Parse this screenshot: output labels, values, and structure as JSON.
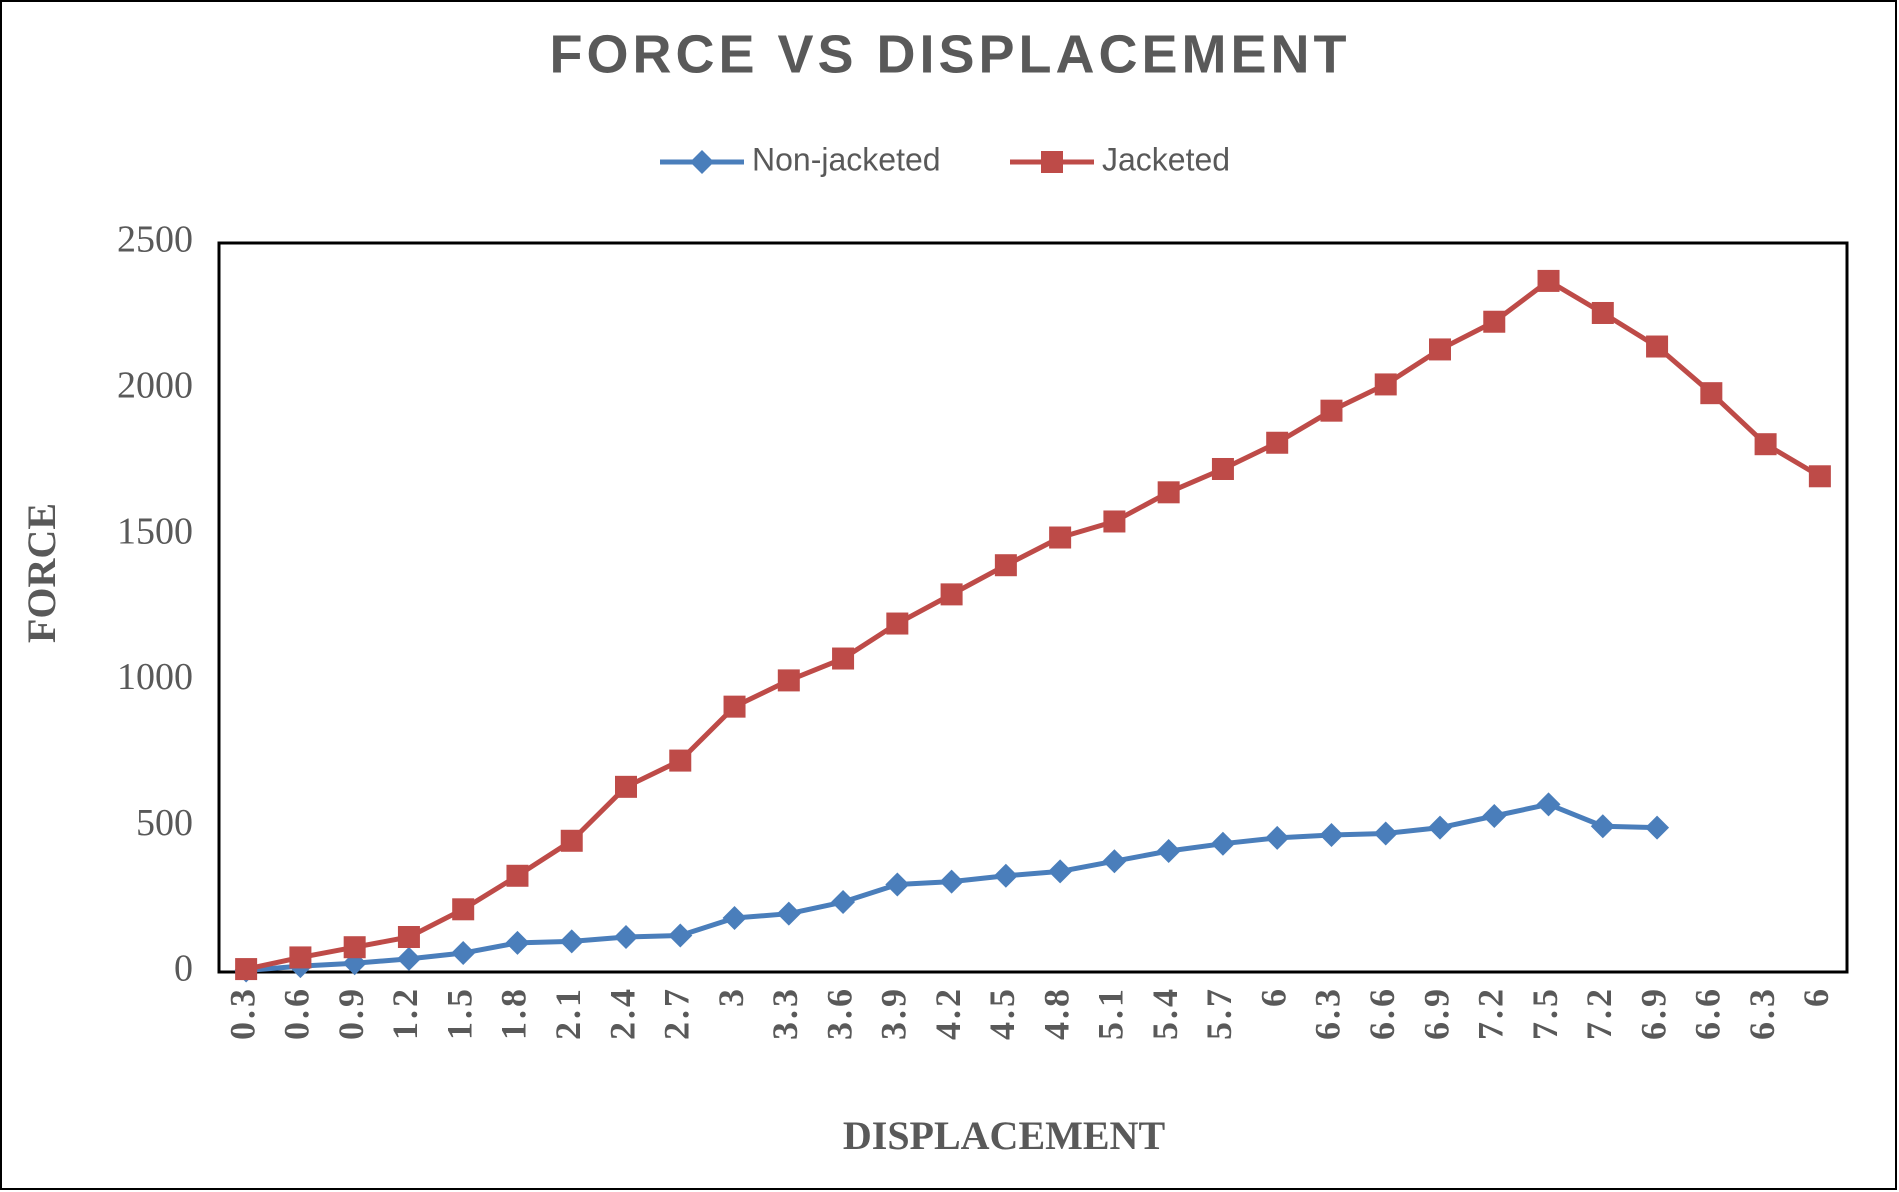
{
  "chart_data": {
    "type": "line",
    "title": "FORCE VS DISPLACEMENT",
    "x_label": "DISPLACEMENT",
    "y_label": "FORCE",
    "categories": [
      "0.3",
      "0.6",
      "0.9",
      "1.2",
      "1.5",
      "1.8",
      "2.1",
      "2.4",
      "2.7",
      "3",
      "3.3",
      "3.6",
      "3.9",
      "4.2",
      "4.5",
      "4.8",
      "5.1",
      "5.4",
      "5.7",
      "6",
      "6.3",
      "6.6",
      "6.9",
      "7.2",
      "7.5",
      "7.2",
      "6.9",
      "6.6",
      "6.3",
      "6"
    ],
    "series": [
      {
        "name": "Non-jacketed",
        "color": "#4a7ebb",
        "marker": "diamond",
        "values": [
          5,
          20,
          30,
          45,
          65,
          100,
          105,
          120,
          125,
          185,
          200,
          240,
          300,
          310,
          330,
          345,
          380,
          415,
          440,
          460,
          470,
          475,
          495,
          535,
          575,
          500,
          495,
          null,
          null,
          null
        ]
      },
      {
        "name": "Jacketed",
        "color": "#be4b48",
        "marker": "square",
        "values": [
          10,
          50,
          85,
          120,
          215,
          330,
          450,
          635,
          725,
          910,
          1000,
          1075,
          1195,
          1295,
          1395,
          1490,
          1545,
          1645,
          1725,
          1815,
          1925,
          2015,
          2135,
          2230,
          2370,
          2260,
          2145,
          1985,
          1810,
          1700
        ]
      }
    ],
    "ylim": [
      0,
      2500
    ],
    "yticks": [
      0,
      500,
      1000,
      1500,
      2000,
      2500
    ],
    "grid": false,
    "legend": "top"
  }
}
